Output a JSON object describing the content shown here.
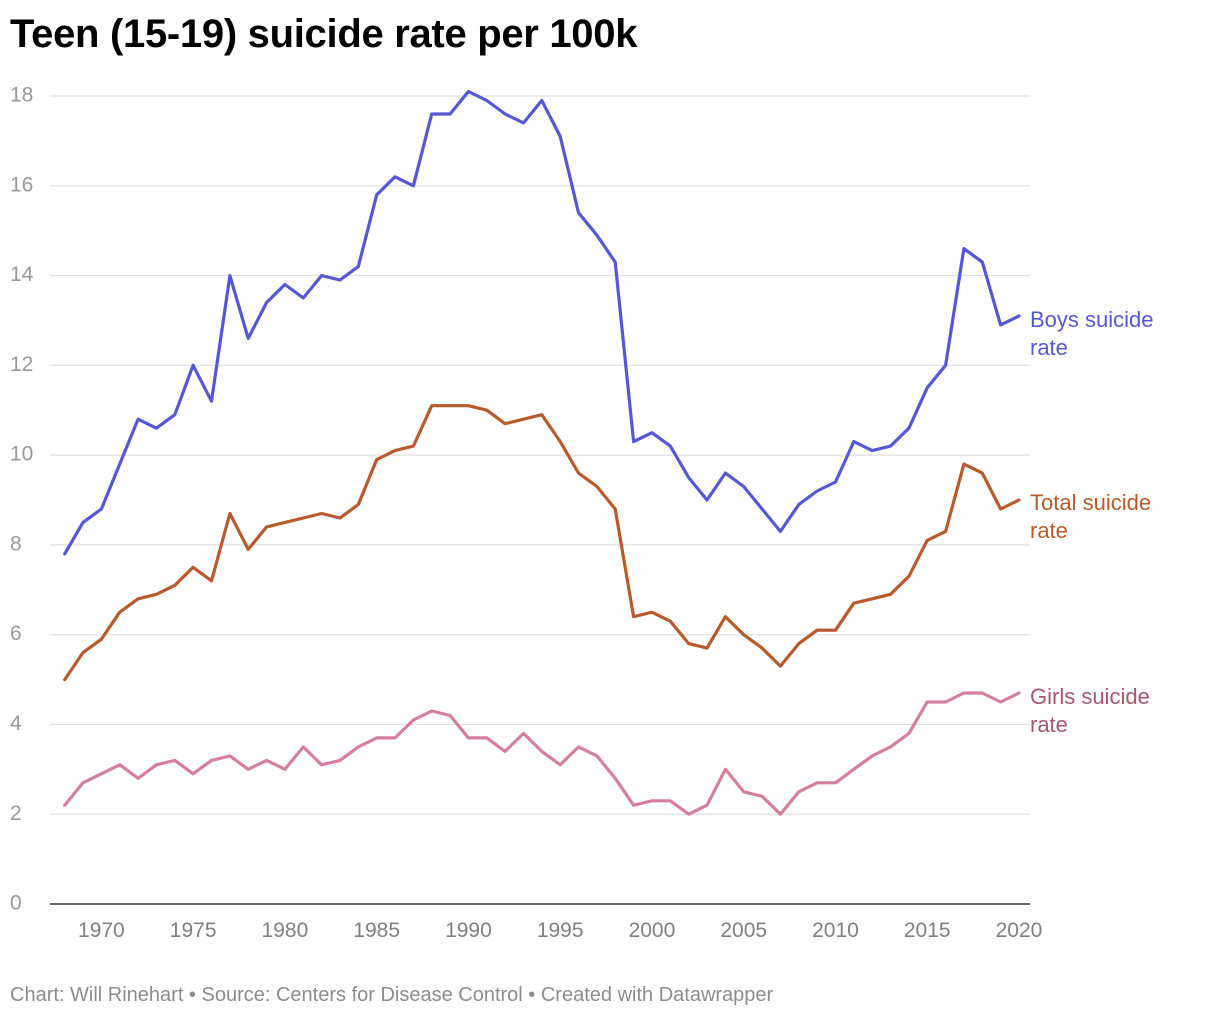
{
  "chart_data": {
    "type": "line",
    "title": "Teen (15-19) suicide rate per 100k",
    "xlabel": "",
    "ylabel": "",
    "x": [
      1968,
      1969,
      1970,
      1971,
      1972,
      1973,
      1974,
      1975,
      1976,
      1977,
      1978,
      1979,
      1980,
      1981,
      1982,
      1983,
      1984,
      1985,
      1986,
      1987,
      1988,
      1989,
      1990,
      1991,
      1992,
      1993,
      1994,
      1995,
      1996,
      1997,
      1998,
      1999,
      2000,
      2001,
      2002,
      2003,
      2004,
      2005,
      2006,
      2007,
      2008,
      2009,
      2010,
      2011,
      2012,
      2013,
      2014,
      2015,
      2016,
      2017,
      2018,
      2019,
      2020
    ],
    "xlim": [
      1967.2,
      2020.6
    ],
    "ylim": [
      0,
      18
    ],
    "grid": true,
    "x_ticks": [
      1970,
      1975,
      1980,
      1985,
      1990,
      1995,
      2000,
      2005,
      2010,
      2015,
      2020
    ],
    "x_tick_labels": [
      "1970",
      "1975",
      "1980",
      "1985",
      "1990",
      "1995",
      "2000",
      "2005",
      "2010",
      "2015",
      "2020"
    ],
    "y_ticks": [
      0,
      2,
      4,
      6,
      8,
      10,
      12,
      14,
      16,
      18
    ],
    "y_tick_labels": [
      "0",
      "2",
      "4",
      "6",
      "8",
      "10",
      "12",
      "14",
      "16",
      "18"
    ],
    "series": [
      {
        "id": "boys",
        "name": "Boys suicide rate",
        "label_lines": [
          "Boys suicide",
          "rate"
        ],
        "color": "#5557d4",
        "values": [
          7.8,
          8.5,
          8.8,
          9.8,
          10.8,
          10.6,
          10.9,
          12.0,
          11.2,
          14.0,
          12.6,
          13.4,
          13.8,
          13.5,
          14.0,
          13.9,
          14.2,
          15.8,
          16.2,
          16.0,
          17.6,
          17.6,
          18.1,
          17.9,
          17.6,
          17.4,
          17.9,
          17.1,
          15.4,
          14.9,
          14.3,
          10.3,
          10.5,
          10.2,
          9.5,
          9.0,
          9.6,
          9.3,
          8.8,
          8.3,
          8.9,
          9.2,
          9.4,
          10.3,
          10.1,
          10.2,
          10.6,
          11.5,
          12.0,
          14.6,
          14.3,
          12.9,
          13.1
        ]
      },
      {
        "id": "total",
        "name": "Total suicide rate",
        "label_lines": [
          "Total suicide",
          "rate"
        ],
        "color": "#b85a2b",
        "values": [
          5.0,
          5.6,
          5.9,
          6.5,
          6.8,
          6.9,
          7.1,
          7.5,
          7.2,
          8.7,
          7.9,
          8.4,
          8.5,
          8.6,
          8.7,
          8.6,
          8.9,
          9.9,
          10.1,
          10.2,
          11.1,
          11.1,
          11.1,
          11.0,
          10.7,
          10.8,
          10.9,
          10.3,
          9.6,
          9.3,
          8.8,
          6.4,
          6.5,
          6.3,
          5.8,
          5.7,
          6.4,
          6.0,
          5.7,
          5.3,
          5.8,
          6.1,
          6.1,
          6.7,
          6.8,
          6.9,
          7.3,
          8.1,
          8.3,
          9.8,
          9.6,
          8.8,
          9.0
        ]
      },
      {
        "id": "girls",
        "name": "Girls suicide rate",
        "label_lines": [
          "Girls suicide",
          "rate"
        ],
        "color": "#a8566c",
        "line_color": "#d47f9d",
        "values": [
          2.2,
          2.7,
          2.9,
          3.1,
          2.8,
          3.1,
          3.2,
          2.9,
          3.2,
          3.3,
          3.0,
          3.2,
          3.0,
          3.5,
          3.1,
          3.2,
          3.5,
          3.7,
          3.7,
          4.1,
          4.3,
          4.2,
          3.7,
          3.7,
          3.4,
          3.8,
          3.4,
          3.1,
          3.5,
          3.3,
          2.8,
          2.2,
          2.3,
          2.3,
          2.0,
          2.2,
          3.0,
          2.5,
          2.4,
          2.0,
          2.5,
          2.7,
          2.7,
          3.0,
          3.3,
          3.5,
          3.8,
          4.5,
          4.5,
          4.7,
          4.7,
          4.5,
          4.7
        ]
      }
    ],
    "source": "Chart: Will Rinehart • Source: Centers for Disease Control • Created with Datawrapper"
  }
}
